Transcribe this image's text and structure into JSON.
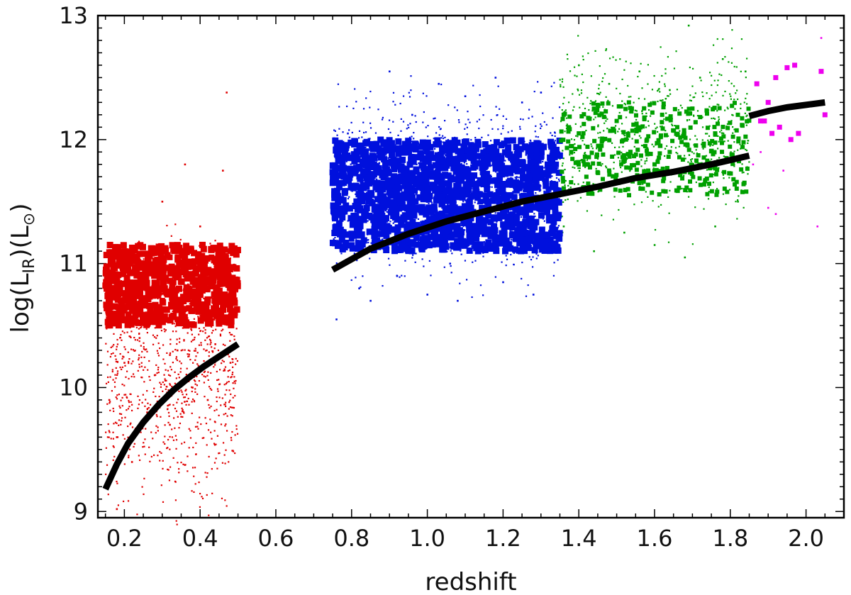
{
  "chart_data": {
    "type": "scatter",
    "title": "",
    "xlabel": "redshift",
    "ylabel": "log(L_IR)(L_⊙)",
    "ylabel_parts": {
      "prefix": "log(L",
      "sub": "IR",
      "mid": ")(L",
      "sub2": "⊙",
      "suffix": ")"
    },
    "xlim": [
      0.13,
      2.1
    ],
    "ylim": [
      8.95,
      13.0
    ],
    "x_ticks": [
      0.2,
      0.4,
      0.6,
      0.8,
      1.0,
      1.2,
      1.4,
      1.6,
      1.8,
      2.0
    ],
    "x_tick_labels": [
      "0.2",
      "0.4",
      "0.6",
      "0.8",
      "1.0",
      "1.2",
      "1.4",
      "1.6",
      "1.8",
      "2.0"
    ],
    "y_ticks": [
      9,
      10,
      11,
      12,
      13
    ],
    "y_tick_labels": [
      "9",
      "10",
      "11",
      "12",
      "13"
    ],
    "grid": false,
    "legend": "none",
    "colors": {
      "red": "#e00000",
      "blue": "#0010dd",
      "green": "#00a000",
      "magenta": "#ee00ee",
      "curve": "#000000"
    },
    "series": [
      {
        "color": "red",
        "detected_region": {
          "x": [
            0.15,
            0.5
          ],
          "y": [
            10.5,
            11.15
          ]
        },
        "faint_region": {
          "x": [
            0.15,
            0.5
          ],
          "y": [
            9.0,
            11.8
          ]
        },
        "detected": [
          [
            0.16,
            10.85
          ],
          [
            0.17,
            10.95
          ],
          [
            0.18,
            10.75
          ],
          [
            0.16,
            10.6
          ],
          [
            0.19,
            10.7
          ],
          [
            0.2,
            10.62
          ],
          [
            0.22,
            10.55
          ],
          [
            0.24,
            11.0
          ],
          [
            0.26,
            10.8
          ],
          [
            0.27,
            10.6
          ],
          [
            0.29,
            10.95
          ],
          [
            0.3,
            10.7
          ],
          [
            0.32,
            11.05
          ],
          [
            0.33,
            10.85
          ],
          [
            0.35,
            10.65
          ],
          [
            0.36,
            11.1
          ],
          [
            0.38,
            10.9
          ],
          [
            0.39,
            10.7
          ],
          [
            0.4,
            11.0
          ],
          [
            0.41,
            10.6
          ],
          [
            0.42,
            10.8
          ],
          [
            0.43,
            11.05
          ],
          [
            0.44,
            10.75
          ],
          [
            0.45,
            10.95
          ],
          [
            0.46,
            10.65
          ],
          [
            0.47,
            10.85
          ],
          [
            0.48,
            11.1
          ],
          [
            0.49,
            10.7
          ],
          [
            0.34,
            10.55
          ],
          [
            0.37,
            10.8
          ]
        ],
        "faint": [
          [
            0.16,
            9.9
          ],
          [
            0.18,
            9.6
          ],
          [
            0.2,
            10.2
          ],
          [
            0.22,
            9.4
          ],
          [
            0.24,
            10.4
          ],
          [
            0.26,
            9.8
          ],
          [
            0.28,
            10.1
          ],
          [
            0.3,
            11.5
          ],
          [
            0.32,
            9.7
          ],
          [
            0.34,
            10.3
          ],
          [
            0.36,
            11.8
          ],
          [
            0.38,
            10.0
          ],
          [
            0.4,
            11.3
          ],
          [
            0.42,
            9.9
          ],
          [
            0.44,
            10.35
          ],
          [
            0.46,
            11.75
          ],
          [
            0.47,
            12.38
          ],
          [
            0.48,
            10.2
          ],
          [
            0.18,
            9.02
          ],
          [
            0.25,
            11.0
          ]
        ]
      },
      {
        "color": "blue",
        "detected_region": {
          "x": [
            0.75,
            1.35
          ],
          "y": [
            11.1,
            12.0
          ]
        },
        "faint_region": {
          "x": [
            0.75,
            1.35
          ],
          "y": [
            10.5,
            12.55
          ]
        },
        "detected": [
          [
            0.76,
            11.4
          ],
          [
            0.78,
            11.65
          ],
          [
            0.8,
            11.2
          ],
          [
            0.83,
            11.5
          ],
          [
            0.86,
            11.8
          ],
          [
            0.88,
            11.3
          ],
          [
            0.9,
            11.6
          ],
          [
            0.93,
            11.15
          ],
          [
            0.96,
            11.7
          ],
          [
            0.98,
            11.45
          ],
          [
            1.0,
            11.9
          ],
          [
            1.02,
            11.3
          ],
          [
            1.04,
            11.6
          ],
          [
            1.06,
            11.85
          ],
          [
            1.08,
            11.4
          ],
          [
            1.1,
            11.7
          ],
          [
            1.12,
            11.95
          ],
          [
            1.14,
            11.5
          ],
          [
            1.16,
            11.25
          ],
          [
            1.18,
            11.8
          ],
          [
            1.2,
            11.6
          ],
          [
            1.22,
            11.35
          ],
          [
            1.24,
            11.9
          ],
          [
            1.26,
            11.7
          ],
          [
            1.28,
            11.45
          ],
          [
            1.3,
            11.95
          ],
          [
            1.32,
            11.6
          ],
          [
            1.34,
            11.8
          ],
          [
            0.82,
            11.7
          ],
          [
            0.95,
            11.25
          ]
        ],
        "faint": [
          [
            0.76,
            10.55
          ],
          [
            0.79,
            12.05
          ],
          [
            0.82,
            10.8
          ],
          [
            0.85,
            10.7
          ],
          [
            0.88,
            12.0
          ],
          [
            0.92,
            10.9
          ],
          [
            0.96,
            12.2
          ],
          [
            1.0,
            10.75
          ],
          [
            1.03,
            12.45
          ],
          [
            1.06,
            11.0
          ],
          [
            1.1,
            12.35
          ],
          [
            1.14,
            11.1
          ],
          [
            1.18,
            12.5
          ],
          [
            1.2,
            10.85
          ],
          [
            1.25,
            12.3
          ],
          [
            1.28,
            10.75
          ],
          [
            1.3,
            12.38
          ],
          [
            0.9,
            12.55
          ],
          [
            1.08,
            10.7
          ],
          [
            1.33,
            11.2
          ]
        ]
      },
      {
        "color": "green",
        "detected_region": {
          "x": [
            1.35,
            1.85
          ],
          "y": [
            11.55,
            12.3
          ]
        },
        "faint_region": {
          "x": [
            1.35,
            1.85
          ],
          "y": [
            11.0,
            12.9
          ]
        },
        "detected": [
          [
            1.36,
            12.2
          ],
          [
            1.38,
            11.9
          ],
          [
            1.4,
            12.05
          ],
          [
            1.42,
            11.7
          ],
          [
            1.44,
            12.25
          ],
          [
            1.46,
            11.95
          ],
          [
            1.48,
            11.75
          ],
          [
            1.5,
            12.15
          ],
          [
            1.52,
            11.85
          ],
          [
            1.54,
            12.25
          ],
          [
            1.56,
            11.65
          ],
          [
            1.58,
            12.0
          ],
          [
            1.6,
            11.8
          ],
          [
            1.62,
            12.2
          ],
          [
            1.64,
            11.9
          ],
          [
            1.66,
            12.1
          ],
          [
            1.68,
            11.75
          ],
          [
            1.7,
            12.25
          ],
          [
            1.73,
            11.95
          ],
          [
            1.76,
            12.05
          ],
          [
            1.79,
            11.85
          ],
          [
            1.82,
            12.2
          ],
          [
            1.45,
            12.28
          ],
          [
            1.53,
            11.6
          ]
        ],
        "faint": [
          [
            1.36,
            11.3
          ],
          [
            1.4,
            12.6
          ],
          [
            1.44,
            11.1
          ],
          [
            1.48,
            12.45
          ],
          [
            1.52,
            11.25
          ],
          [
            1.56,
            12.55
          ],
          [
            1.6,
            11.15
          ],
          [
            1.64,
            12.4
          ],
          [
            1.68,
            11.05
          ],
          [
            1.69,
            12.92
          ],
          [
            1.72,
            12.5
          ],
          [
            1.76,
            11.3
          ],
          [
            1.78,
            12.65
          ],
          [
            1.82,
            11.5
          ],
          [
            1.84,
            12.55
          ]
        ]
      },
      {
        "color": "magenta",
        "detected": [
          [
            1.87,
            12.45
          ],
          [
            1.89,
            12.15
          ],
          [
            1.9,
            12.3
          ],
          [
            1.91,
            12.05
          ],
          [
            1.92,
            12.5
          ],
          [
            1.93,
            12.1
          ],
          [
            1.95,
            12.58
          ],
          [
            1.96,
            12.0
          ],
          [
            1.98,
            12.05
          ],
          [
            2.04,
            12.55
          ],
          [
            2.05,
            12.2
          ],
          [
            1.88,
            12.15
          ],
          [
            1.97,
            12.6
          ]
        ],
        "faint": [
          [
            1.88,
            11.9
          ],
          [
            1.9,
            11.45
          ],
          [
            1.92,
            11.4
          ],
          [
            1.94,
            11.75
          ],
          [
            2.03,
            11.3
          ],
          [
            2.04,
            12.82
          ],
          [
            1.86,
            11.8
          ]
        ]
      }
    ],
    "curves": [
      {
        "color": "curve",
        "x": [
          0.15,
          0.18,
          0.21,
          0.25,
          0.29,
          0.33,
          0.37,
          0.41,
          0.45,
          0.5
        ],
        "y": [
          9.18,
          9.38,
          9.55,
          9.72,
          9.86,
          9.98,
          10.08,
          10.17,
          10.25,
          10.35
        ]
      },
      {
        "color": "curve",
        "x": [
          0.75,
          0.85,
          0.95,
          1.05,
          1.15,
          1.25,
          1.35,
          1.45,
          1.55,
          1.65,
          1.75,
          1.85
        ],
        "y": [
          10.95,
          11.12,
          11.24,
          11.34,
          11.42,
          11.5,
          11.56,
          11.62,
          11.69,
          11.74,
          11.8,
          11.87
        ]
      },
      {
        "color": "curve",
        "x": [
          1.85,
          1.9,
          1.95,
          2.0,
          2.05
        ],
        "y": [
          12.19,
          12.23,
          12.26,
          12.28,
          12.3
        ]
      }
    ]
  }
}
